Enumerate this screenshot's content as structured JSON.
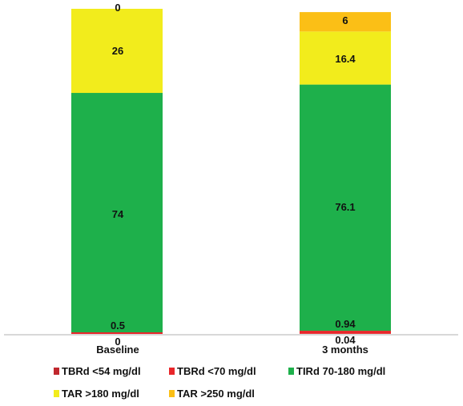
{
  "chart_data": {
    "type": "bar",
    "stacked": true,
    "categories": [
      "Baseline",
      "3 months"
    ],
    "series": [
      {
        "name": "TBRd <54 mg/dl",
        "color": "#c0272d",
        "values": [
          0,
          0.04
        ],
        "labels": [
          "0",
          "0.04"
        ]
      },
      {
        "name": "TBRd <70 mg/dl",
        "color": "#e8262a",
        "values": [
          0.5,
          0.94
        ],
        "labels": [
          "0.5",
          "0.94"
        ]
      },
      {
        "name": "TIRd 70-180 mg/dl",
        "color": "#1eb04b",
        "values": [
          74,
          76.1
        ],
        "labels": [
          "74",
          "76.1"
        ]
      },
      {
        "name": "TAR >180 mg/dl",
        "color": "#f2ec1c",
        "values": [
          26,
          16.4
        ],
        "labels": [
          "26",
          "16.4"
        ]
      },
      {
        "name": "TAR >250 mg/dl",
        "color": "#fbbf16",
        "values": [
          0,
          6
        ],
        "labels": [
          "0",
          "6"
        ]
      }
    ],
    "ylim": [
      0,
      100
    ],
    "grid": false,
    "legend": "bottom"
  }
}
